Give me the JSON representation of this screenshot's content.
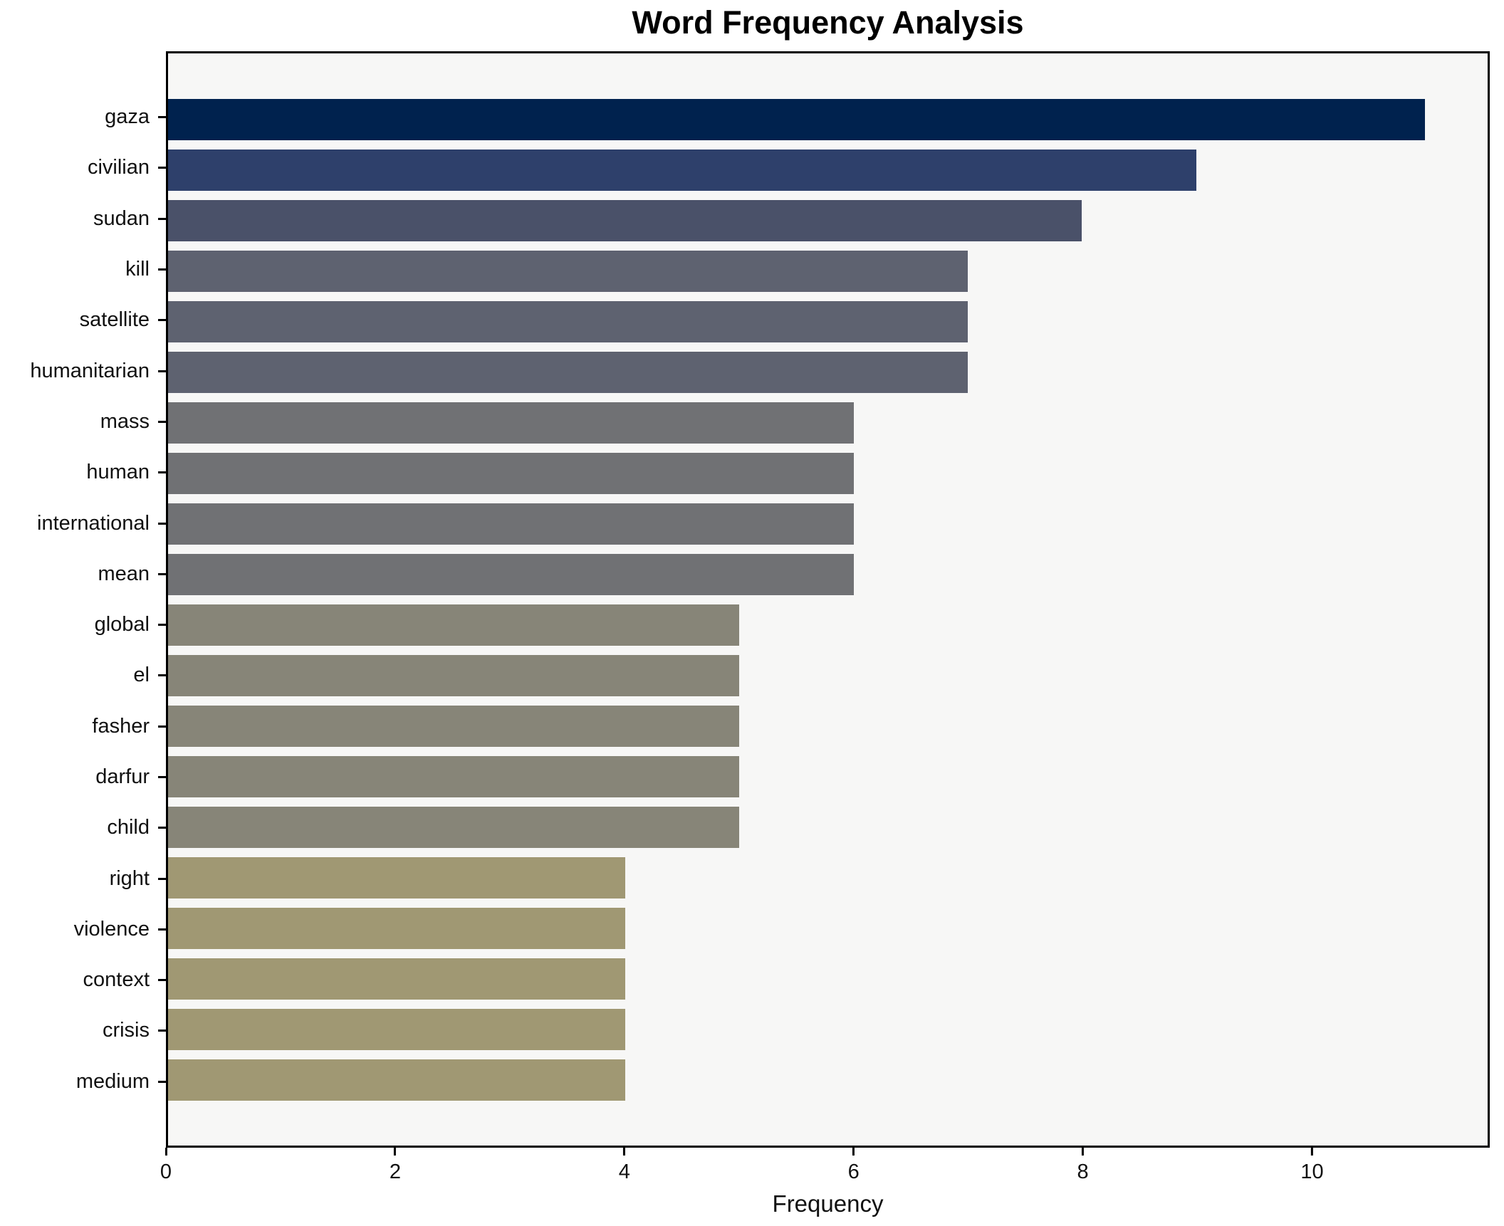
{
  "title": "Word Frequency Analysis",
  "chart_data": {
    "type": "bar",
    "orientation": "horizontal",
    "title": "Word Frequency Analysis",
    "xlabel": "Frequency",
    "ylabel": "",
    "categories": [
      "gaza",
      "civilian",
      "sudan",
      "kill",
      "satellite",
      "humanitarian",
      "mass",
      "human",
      "international",
      "mean",
      "global",
      "el",
      "fasher",
      "darfur",
      "child",
      "right",
      "violence",
      "context",
      "crisis",
      "medium"
    ],
    "values": [
      11,
      9,
      8,
      7,
      7,
      7,
      6,
      6,
      6,
      6,
      5,
      5,
      5,
      5,
      5,
      4,
      4,
      4,
      4,
      4
    ],
    "bar_colors": [
      "#00224e",
      "#2e406b",
      "#4a5169",
      "#5e6270",
      "#5e6270",
      "#5e6270",
      "#707174",
      "#707174",
      "#707174",
      "#707174",
      "#878578",
      "#878578",
      "#878578",
      "#878578",
      "#878578",
      "#a09873",
      "#a09873",
      "#a09873",
      "#a09873",
      "#a09873"
    ],
    "xlim": [
      0,
      11.55
    ],
    "xticks": [
      0,
      2,
      4,
      6,
      8,
      10
    ],
    "grid": false,
    "legend": null,
    "plot_bg": "#f7f7f6",
    "figure_bg": "#ffffff",
    "colormap": "cividis"
  }
}
